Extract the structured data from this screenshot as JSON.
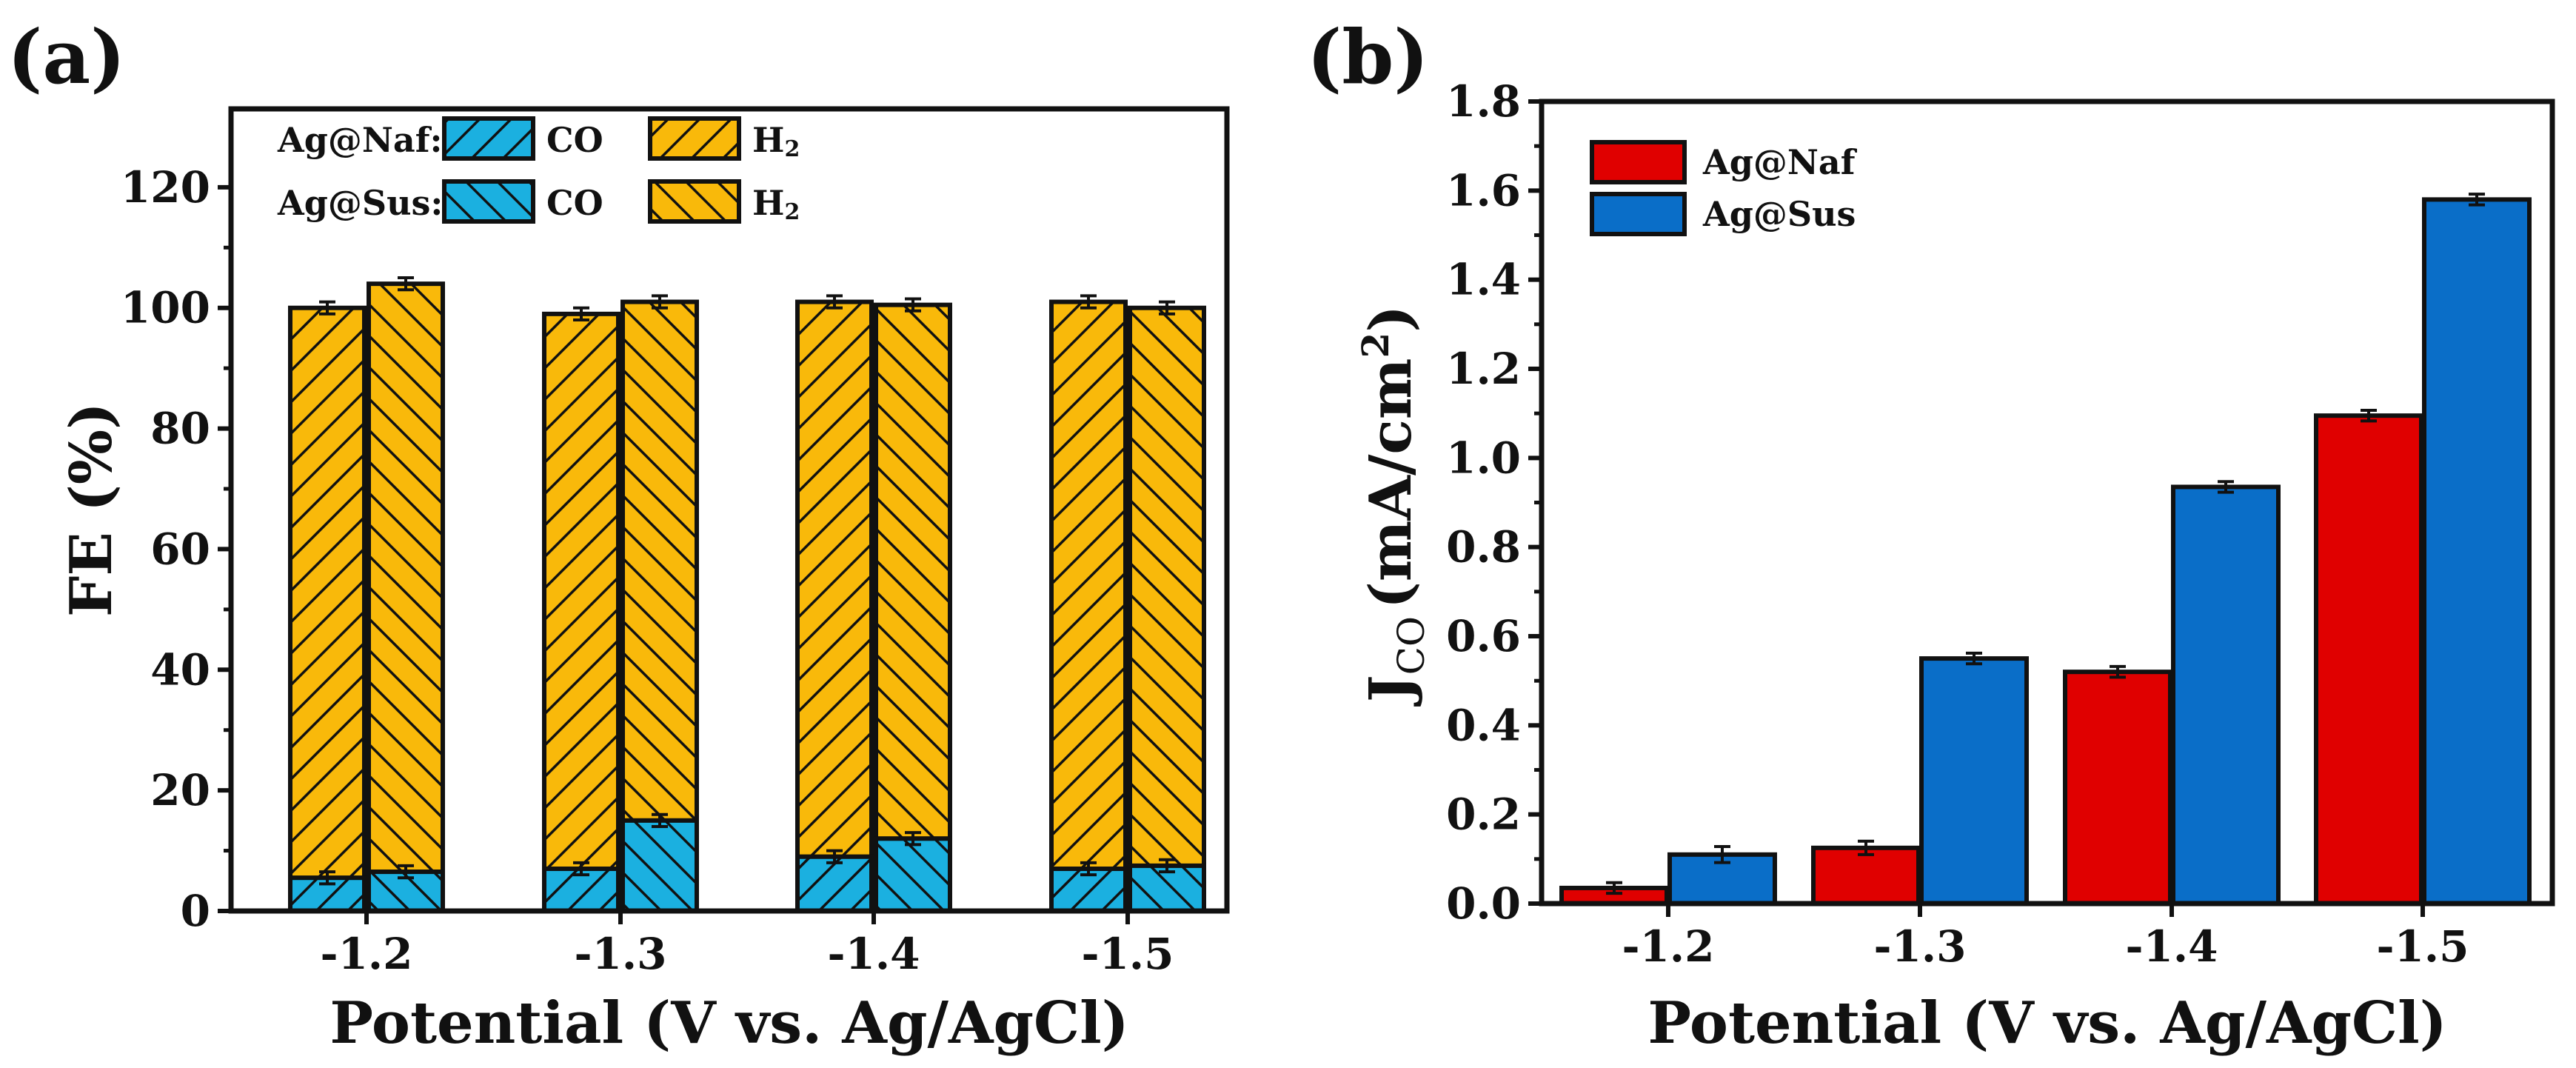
{
  "panel_a": {
    "label": "(a)",
    "legend": {
      "rows": [
        {
          "label": "Ag@Naf:",
          "co": "CO",
          "h2_base": "H",
          "h2_sub": "2"
        },
        {
          "label": "Ag@Sus:",
          "co": "CO",
          "h2_base": "H",
          "h2_sub": "2"
        }
      ]
    }
  },
  "panel_b": {
    "label": "(b)",
    "ylabel_main": "J",
    "ylabel_sub": "CO",
    "ylabel_units": "(mA/cm",
    "ylabel_exp": "2",
    "ylabel_close": ")"
  },
  "colors": {
    "co": "#1BB0E0",
    "h2": "#F9B90A",
    "naf": "#E00000",
    "sus": "#0A6EC8",
    "frame": "#111111"
  },
  "chart_data": [
    {
      "type": "bar",
      "subtype": "stacked-grouped",
      "title": "",
      "xlabel": "Potential (V vs. Ag/AgCl)",
      "ylabel": "FE (%)",
      "ylim": [
        0,
        133
      ],
      "yticks": [
        0,
        20,
        40,
        60,
        80,
        100,
        120
      ],
      "categories": [
        "-1.2",
        "-1.3",
        "-1.4",
        "-1.5"
      ],
      "groups": [
        {
          "name": "Ag@Naf",
          "hatch": "diagonal-up",
          "co": [
            5.5,
            7.0,
            9.0,
            7.0
          ],
          "h2": [
            94.5,
            92.0,
            92.0,
            94.0
          ],
          "co_err": [
            1.0,
            1.0,
            1.0,
            1.0
          ],
          "total_err": [
            1.0,
            1.0,
            1.0,
            1.0
          ]
        },
        {
          "name": "Ag@Sus",
          "hatch": "diagonal-down",
          "co": [
            6.5,
            15.0,
            12.0,
            7.5
          ],
          "h2": [
            97.5,
            86.0,
            88.5,
            92.5
          ],
          "co_err": [
            1.0,
            1.0,
            1.0,
            1.0
          ],
          "total_err": [
            1.0,
            1.0,
            1.0,
            1.0
          ]
        }
      ],
      "legend_position": "top-left"
    },
    {
      "type": "bar",
      "title": "",
      "xlabel": "Potential (V vs. Ag/AgCl)",
      "ylabel": "JCO (mA/cm2)",
      "ylim": [
        0,
        1.8
      ],
      "yticks": [
        "0.0",
        "0.2",
        "0.4",
        "0.6",
        "0.8",
        "1.0",
        "1.2",
        "1.4",
        "1.6",
        "1.8"
      ],
      "categories": [
        "-1.2",
        "-1.3",
        "-1.4",
        "-1.5"
      ],
      "series": [
        {
          "name": "Ag@Naf",
          "values": [
            0.035,
            0.125,
            0.52,
            1.095
          ],
          "errors": [
            0.012,
            0.015,
            0.012,
            0.012
          ]
        },
        {
          "name": "Ag@Sus",
          "values": [
            0.11,
            0.55,
            0.935,
            1.58
          ],
          "errors": [
            0.018,
            0.012,
            0.012,
            0.012
          ]
        }
      ],
      "legend_position": "top-left"
    }
  ]
}
